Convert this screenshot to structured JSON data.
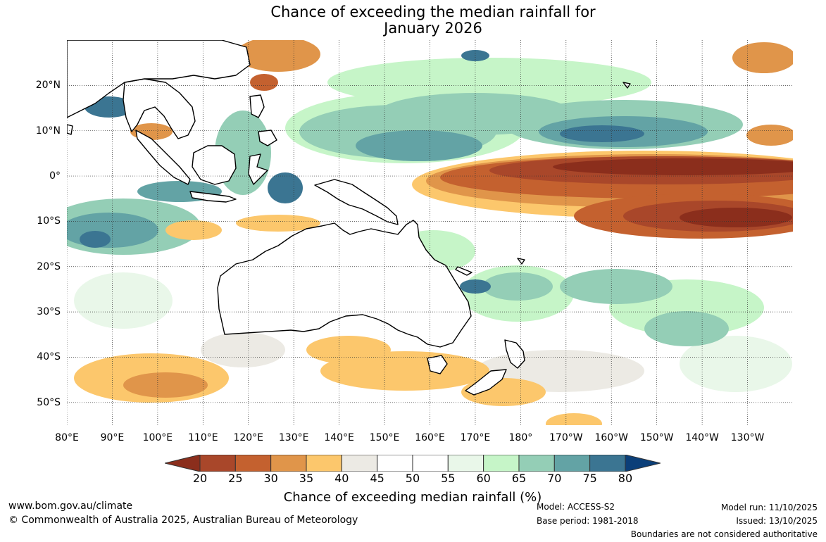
{
  "title": {
    "line1": "Chance of exceeding the median rainfall for",
    "line2": "January 2026"
  },
  "map": {
    "extent": {
      "lon_min": 80,
      "lon_max": 240,
      "lat_min": -55,
      "lat_max": 30
    },
    "lat_labels": [
      "20°N",
      "10°N",
      "0°",
      "10°S",
      "20°S",
      "30°S",
      "40°S",
      "50°S"
    ],
    "lat_values": [
      20,
      10,
      0,
      -10,
      -20,
      -30,
      -40,
      -50
    ],
    "lon_labels": [
      "80°E",
      "90°E",
      "100°E",
      "110°E",
      "120°E",
      "130°E",
      "140°E",
      "150°E",
      "160°E",
      "170°E",
      "180°",
      "170°W",
      "160°W",
      "150°W",
      "140°W",
      "130°W"
    ],
    "lon_values": [
      80,
      90,
      100,
      110,
      120,
      130,
      140,
      150,
      160,
      170,
      180,
      190,
      200,
      210,
      220,
      230
    ]
  },
  "colorbar": {
    "title": "Chance of exceeding median rainfall (%)",
    "tick_labels": [
      "20",
      "25",
      "30",
      "35",
      "40",
      "45",
      "50",
      "55",
      "60",
      "65",
      "70",
      "75",
      "80"
    ],
    "below_color": "#8b2e1c",
    "above_color": "#0b3f79",
    "colors": [
      "#a9472a",
      "#c4612f",
      "#e0954a",
      "#fcc76c",
      "#eceae4",
      "#ffffff",
      "#ffffff",
      "#e9f7e9",
      "#c6f5c8",
      "#94ceb6",
      "#63a3a5",
      "#3b7592"
    ]
  },
  "footer": {
    "website": "www.bom.gov.au/climate",
    "copyright": "© Commonwealth of Australia 2025, Australian Bureau of Meteorology",
    "model": "Model: ACCESS-S2",
    "base_period": "Base period: 1981-2018",
    "model_run": "Model run: 11/10/2025",
    "issued": "Issued: 13/10/2025",
    "disclaimer": "Boundaries are not considered authoritative"
  }
}
